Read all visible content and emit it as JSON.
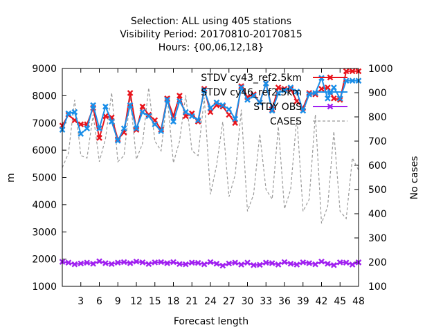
{
  "chart_data": {
    "type": "line",
    "title_lines": [
      "Selection: ALL using   405 stations",
      "Visibility   Period: 20170810-20170815",
      "Hours: {00,06,12,18}"
    ],
    "xlabel": "Forecast length",
    "ylabel": "m",
    "y2label": "No cases",
    "xlim": [
      0,
      48
    ],
    "ylim": [
      1000,
      9000
    ],
    "y2lim": [
      100,
      1000
    ],
    "xticks": [
      3,
      6,
      9,
      12,
      15,
      18,
      21,
      24,
      27,
      30,
      33,
      36,
      39,
      42,
      45,
      48
    ],
    "yticks": [
      1000,
      2000,
      3000,
      4000,
      5000,
      6000,
      7000,
      8000,
      9000
    ],
    "y2ticks": [
      100,
      200,
      300,
      400,
      500,
      600,
      700,
      800,
      900,
      1000
    ],
    "grid": false,
    "legend_position": "top-right",
    "x": [
      0,
      1,
      2,
      3,
      4,
      5,
      6,
      7,
      8,
      9,
      10,
      11,
      12,
      13,
      14,
      15,
      16,
      17,
      18,
      19,
      20,
      21,
      22,
      23,
      24,
      25,
      26,
      27,
      28,
      29,
      30,
      31,
      32,
      33,
      34,
      35,
      36,
      37,
      38,
      39,
      40,
      41,
      42,
      43,
      44,
      45,
      46,
      47,
      48
    ],
    "series": [
      {
        "name": "STDV cy43_ref2.5km",
        "color": "#e8141c",
        "axis": "y",
        "marker": "x",
        "values": [
          6900,
          7300,
          7100,
          6950,
          6950,
          7550,
          6450,
          7250,
          7200,
          6400,
          6650,
          8100,
          6750,
          7600,
          7300,
          7100,
          6750,
          7900,
          7250,
          8000,
          7250,
          7350,
          7050,
          8250,
          7400,
          7650,
          7600,
          7300,
          7000,
          8350,
          7950,
          8050,
          7750,
          8450,
          7500,
          8300,
          8250,
          8250,
          7800,
          7550,
          8100,
          8050,
          8250,
          8300,
          7900,
          7850,
          8900,
          8900,
          8900
        ]
      },
      {
        "name": "STDV cy46_ref2.5km",
        "color": "#1a8ee8",
        "axis": "y",
        "marker": "x",
        "values": [
          6750,
          7350,
          7400,
          6600,
          6800,
          7650,
          6800,
          7600,
          7050,
          6350,
          6800,
          7650,
          6800,
          7400,
          7250,
          6950,
          6700,
          7850,
          7050,
          7800,
          7400,
          7250,
          7100,
          8200,
          7550,
          7750,
          7650,
          7500,
          7150,
          8300,
          7850,
          8000,
          7750,
          8450,
          7450,
          8100,
          8200,
          8300,
          8150,
          7450,
          8050,
          8100,
          8650,
          7900,
          8300,
          7900,
          8550,
          8550,
          8550
        ]
      },
      {
        "name": "STDY OBS",
        "color": "#a020f0",
        "axis": "y",
        "marker": "x",
        "values": [
          1900,
          1870,
          1810,
          1840,
          1870,
          1830,
          1920,
          1850,
          1820,
          1870,
          1890,
          1850,
          1910,
          1880,
          1820,
          1880,
          1890,
          1850,
          1890,
          1820,
          1810,
          1870,
          1860,
          1810,
          1890,
          1830,
          1760,
          1840,
          1870,
          1800,
          1870,
          1780,
          1790,
          1870,
          1850,
          1800,
          1890,
          1830,
          1800,
          1880,
          1850,
          1810,
          1910,
          1830,
          1780,
          1880,
          1870,
          1800,
          1880
        ]
      },
      {
        "name": "CASES",
        "color": "#999999",
        "axis": "y2",
        "values": [
          590,
          650,
          870,
          640,
          630,
          810,
          615,
          710,
          900,
          615,
          640,
          880,
          625,
          690,
          920,
          700,
          660,
          880,
          610,
          700,
          890,
          660,
          640,
          880,
          480,
          600,
          780,
          470,
          560,
          830,
          410,
          480,
          730,
          500,
          460,
          760,
          420,
          500,
          800,
          410,
          460,
          810,
          360,
          430,
          740,
          410,
          380,
          630,
          580
        ]
      }
    ]
  }
}
